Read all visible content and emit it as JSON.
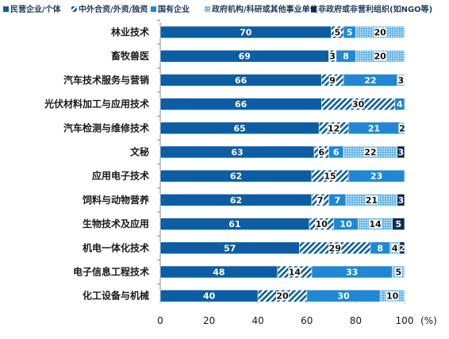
{
  "chart_data": {
    "type": "bar",
    "orientation": "horizontal",
    "stacked": true,
    "categories": [
      "林业技术",
      "畜牧兽医",
      "汽车技术服务与营销",
      "光伏材料加工与应用技术",
      "汽车检测与维修技术",
      "文秘",
      "应用电子技术",
      "饲料与动物营养",
      "生物技术及应用",
      "机电一体化技术",
      "电子信息工程技术",
      "化工设备与机械"
    ],
    "series": [
      {
        "name": "民营企业/个体",
        "color": "#0b5ea5",
        "values": [
          70,
          69,
          66,
          66,
          65,
          63,
          62,
          62,
          61,
          57,
          48,
          40
        ]
      },
      {
        "name": "中外合资/外资/独资",
        "color": "#0b5ea5",
        "values": [
          5,
          3,
          9,
          30,
          12,
          6,
          15,
          7,
          10,
          29,
          14,
          20
        ]
      },
      {
        "name": "国有企业",
        "color": "#1e88d6",
        "values": [
          5,
          8,
          22,
          4,
          21,
          6,
          23,
          7,
          10,
          8,
          33,
          30
        ]
      },
      {
        "name": "政府机构/科研或其他事业单位",
        "color": "#69b8ec",
        "values": [
          20,
          20,
          3,
          0,
          2,
          22,
          0,
          21,
          14,
          4,
          5,
          10
        ]
      },
      {
        "name": "非政府或非营利组织(如NGO等)",
        "color": "#0f2d52",
        "values": [
          0,
          0,
          0,
          0,
          0,
          3,
          0,
          3,
          5,
          2,
          0,
          0
        ]
      }
    ],
    "labels": [
      [
        "70",
        "5",
        "5",
        "20",
        ""
      ],
      [
        "69",
        "3",
        "8",
        "20",
        ""
      ],
      [
        "66",
        "9",
        "22",
        "3",
        ""
      ],
      [
        "66",
        "30",
        "4",
        "",
        ""
      ],
      [
        "65",
        "12",
        "21",
        "2",
        ""
      ],
      [
        "63",
        "6",
        "6",
        "22",
        "3"
      ],
      [
        "62",
        "15",
        "23",
        "",
        ""
      ],
      [
        "62",
        "7",
        "7",
        "21",
        "3"
      ],
      [
        "61",
        "10",
        "10",
        "14",
        "5"
      ],
      [
        "57",
        "29",
        "8",
        "4",
        "2"
      ],
      [
        "48",
        "14",
        "33",
        "5",
        ""
      ],
      [
        "40",
        "20",
        "30",
        "10",
        ""
      ]
    ],
    "xlim": [
      0,
      100
    ],
    "xticks": [
      "0",
      "20",
      "40",
      "60",
      "80",
      "100"
    ],
    "x_unit": "(%)",
    "legend_position": "top"
  }
}
